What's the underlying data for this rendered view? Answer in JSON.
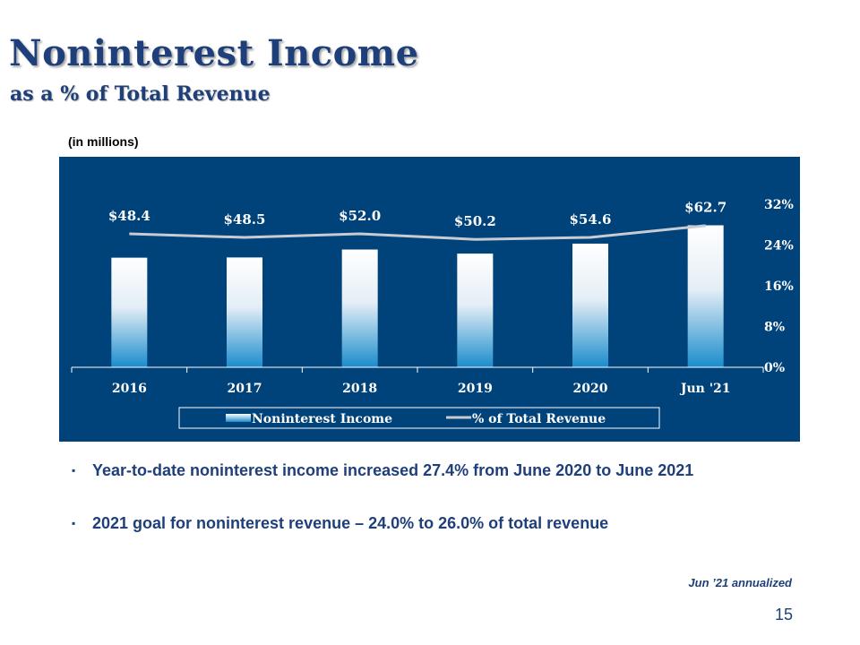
{
  "slide": {
    "title": "Noninterest Income",
    "subtitle": "as a % of Total Revenue",
    "units_note": "(in millions)",
    "bullets": [
      "Year-to-date noninterest income increased 27.4% from June 2020 to June 2021",
      "2021 goal for noninterest revenue – 24.0% to 26.0% of total revenue"
    ],
    "bullet_marker": "▪",
    "footnote": "Jun ’21 annualized",
    "page_number": "15"
  },
  "colors": {
    "chart_background": "#00427a",
    "title": "#1f3f7a",
    "bar_top": "#ffffff",
    "bar_bottom": "#1a8ccc",
    "line": "#c8ccd2",
    "axis": "#ffffff"
  },
  "chart_data": {
    "type": "bar",
    "categories": [
      "2016",
      "2017",
      "2018",
      "2019",
      "2020",
      "Jun '21"
    ],
    "series": [
      {
        "name": "Noninterest Income",
        "type": "bar",
        "axis": "left",
        "values": [
          48.4,
          48.5,
          52.0,
          50.2,
          54.6,
          62.7
        ],
        "data_labels": [
          "$48.4",
          "$48.5",
          "$52.0",
          "$50.2",
          "$54.6",
          "$62.7"
        ]
      },
      {
        "name": "% of Total Revenue",
        "type": "line",
        "axis": "right",
        "values": [
          26.2,
          25.5,
          26.2,
          25.1,
          25.5,
          27.8
        ]
      }
    ],
    "left_axis": {
      "min": 0,
      "max": 89,
      "visible": false
    },
    "right_axis": {
      "min": 0,
      "max": 32,
      "ticks": [
        0,
        8,
        16,
        24,
        32
      ],
      "tick_labels": [
        "0%",
        "8%",
        "16%",
        "24%",
        "32%"
      ]
    },
    "grid": false,
    "legend": {
      "position": "bottom",
      "entries": [
        "Noninterest Income",
        "% of Total Revenue"
      ]
    }
  }
}
